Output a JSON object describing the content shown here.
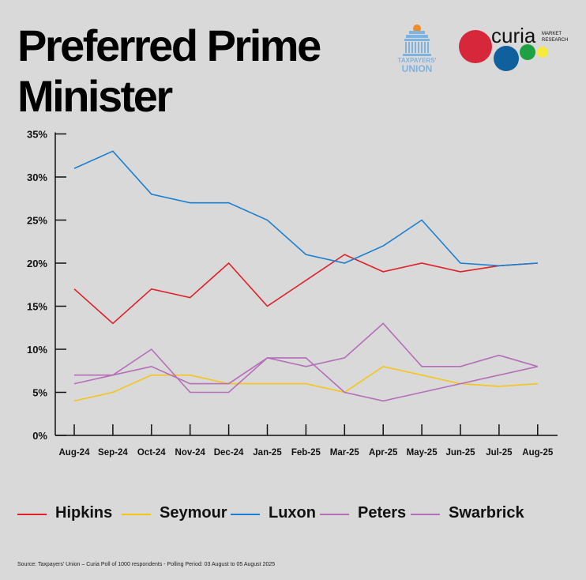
{
  "title": "Preferred Prime Minister",
  "logos": {
    "taxpayers_union": {
      "line1": "TAXPAYERS'",
      "line2": "UNION"
    },
    "curia": {
      "name": "curia",
      "line1": "MARKET",
      "line2": "RESEARCH"
    }
  },
  "source": "Source: Taxpayers' Union – Curia Poll of 1000 respondents - Polling Period: 03 August to 05 August 2025",
  "chart_data": {
    "type": "line",
    "title": "Preferred Prime Minister",
    "xlabel": "",
    "ylabel": "",
    "ylim": [
      0,
      35
    ],
    "yticks": [
      0,
      5,
      10,
      15,
      20,
      25,
      30,
      35
    ],
    "ytick_labels": [
      "0%",
      "5%",
      "10%",
      "15%",
      "20%",
      "25%",
      "30%",
      "35%"
    ],
    "grid": false,
    "legend_position": "bottom",
    "categories": [
      "Aug-24",
      "Sep-24",
      "Oct-24",
      "Nov-24",
      "Dec-24",
      "Jan-25",
      "Feb-25",
      "Mar-25",
      "Apr-25",
      "May-25",
      "Jun-25",
      "Jul-25",
      "Aug-25"
    ],
    "series": [
      {
        "name": "Hipkins",
        "color": "#e0202a",
        "values": [
          17,
          13,
          17,
          16,
          20,
          15,
          18,
          21,
          19,
          20,
          19,
          19.7,
          20
        ]
      },
      {
        "name": "Seymour",
        "color": "#f5c518",
        "values": [
          4,
          5,
          7,
          7,
          6,
          6,
          6,
          5,
          8,
          7,
          6,
          5.7,
          6
        ]
      },
      {
        "name": "Luxon",
        "color": "#1a7fd0",
        "values": [
          31,
          33,
          28,
          27,
          27,
          25,
          21,
          20,
          22,
          25,
          20,
          19.7,
          20
        ]
      },
      {
        "name": "Peters",
        "color": "#b56eb9",
        "values": [
          7,
          7,
          10,
          5,
          5,
          9,
          9,
          5,
          4,
          5,
          6,
          7,
          8
        ]
      },
      {
        "name": "Swarbrick",
        "color": "#b56eb9",
        "values": [
          6,
          7,
          8,
          6,
          6,
          9,
          8,
          9,
          13,
          8,
          8,
          9.3,
          8
        ]
      }
    ]
  }
}
